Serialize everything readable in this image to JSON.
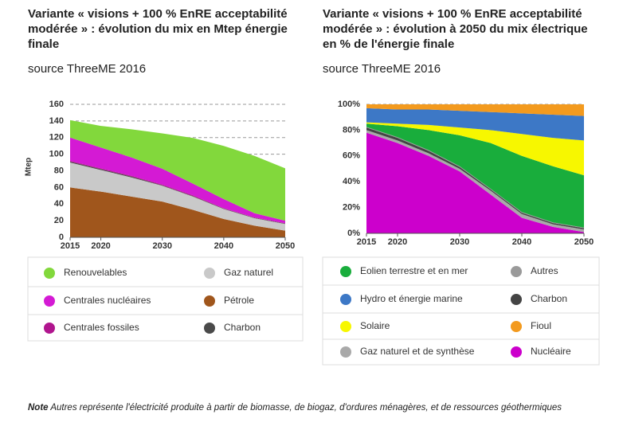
{
  "chart_data": [
    {
      "type": "area",
      "stacked": true,
      "title": "Variante « visions + 100 % EnRE acceptabilité modérée » : évolution du mix en Mtep énergie finale",
      "subtitle": "source ThreeME 2016",
      "y_label": "Mtep",
      "x": [
        2015,
        2020,
        2025,
        2030,
        2035,
        2040,
        2045,
        2050
      ],
      "xlim": [
        2015,
        2050
      ],
      "xticks": [
        2015,
        2020,
        2030,
        2040,
        2050
      ],
      "ylim": [
        0,
        160
      ],
      "yticks": [
        0,
        20,
        40,
        60,
        80,
        100,
        120,
        140,
        160
      ],
      "grid": true,
      "series": [
        {
          "name": "Pétrole",
          "color": "#a0561c",
          "values": [
            60,
            55,
            49,
            43,
            33,
            22,
            14,
            8
          ]
        },
        {
          "name": "Gaz naturel",
          "color": "#c9c9c9",
          "values": [
            30,
            26,
            23,
            19,
            16,
            12,
            9,
            8
          ]
        },
        {
          "name": "Charbon",
          "color": "#4a4a4a",
          "values": [
            1,
            1,
            1,
            0.5,
            0.5,
            0.5,
            0.5,
            0.5
          ]
        },
        {
          "name": "Centrales fossiles",
          "color": "#b0158e",
          "values": [
            1,
            1,
            1,
            1,
            1,
            0.5,
            0.5,
            0.5
          ]
        },
        {
          "name": "Centrales nucléaires",
          "color": "#d41ad4",
          "values": [
            28,
            25,
            22,
            19,
            14,
            11,
            5,
            3
          ]
        },
        {
          "name": "Renouvelables",
          "color": "#82d83c",
          "values": [
            21,
            26,
            34,
            42.5,
            55,
            64,
            69,
            63
          ]
        }
      ]
    },
    {
      "type": "area",
      "stacked": true,
      "title": "Variante « visions + 100 % EnRE acceptabilité modérée » : évolution à 2050 du mix électrique en % de l'énergie finale",
      "subtitle": "source ThreeME 2016",
      "x": [
        2015,
        2020,
        2025,
        2030,
        2035,
        2040,
        2045,
        2050
      ],
      "xlim": [
        2015,
        2050
      ],
      "xticks": [
        2015,
        2020,
        2030,
        2040,
        2050
      ],
      "ylim": [
        0,
        100
      ],
      "yticks": [
        {
          "value": 0,
          "label": "0%"
        },
        {
          "value": 20,
          "label": "20%"
        },
        {
          "value": 40,
          "label": "40%"
        },
        {
          "value": 60,
          "label": "60%"
        },
        {
          "value": 80,
          "label": "80%"
        },
        {
          "value": 100,
          "label": "100%"
        }
      ],
      "grid": true,
      "series": [
        {
          "name": "Nucléaire",
          "color": "#cc00cc",
          "values": [
            78,
            70,
            60,
            48,
            30,
            12,
            5,
            1
          ]
        },
        {
          "name": "Gaz naturel et de synthèse",
          "color": "#a9a9a9",
          "values": [
            2,
            2,
            2,
            2,
            3,
            3,
            2,
            2
          ]
        },
        {
          "name": "Charbon",
          "color": "#444444",
          "values": [
            2,
            2,
            2,
            1.5,
            1,
            1,
            1,
            1
          ]
        },
        {
          "name": "Autres",
          "color": "#9a9a9a",
          "values": [
            0.5,
            0.5,
            0.5,
            0.5,
            0.5,
            0.5,
            0.5,
            0.5
          ]
        },
        {
          "name": "Eolien terrestre et en mer",
          "color": "#19ad3c",
          "values": [
            2.5,
            8.5,
            15.5,
            24,
            35.5,
            43.5,
            43.5,
            40.5
          ]
        },
        {
          "name": "Solaire",
          "color": "#f7f700",
          "values": [
            1,
            2,
            4,
            6,
            10,
            17,
            22,
            27
          ]
        },
        {
          "name": "Hydro et énergie marine",
          "color": "#3d78c6",
          "values": [
            11,
            11,
            12,
            13,
            14,
            16,
            18,
            19
          ]
        },
        {
          "name": "Fioul",
          "color": "#f39a1e",
          "values": [
            3,
            4,
            4,
            5,
            6,
            7,
            8,
            9
          ]
        }
      ]
    }
  ],
  "note_label": "Note",
  "note_text": "Autres représente l'électricité produite à partir de biomasse, de biogaz, d'ordures ménagères, et de ressources géothermiques"
}
